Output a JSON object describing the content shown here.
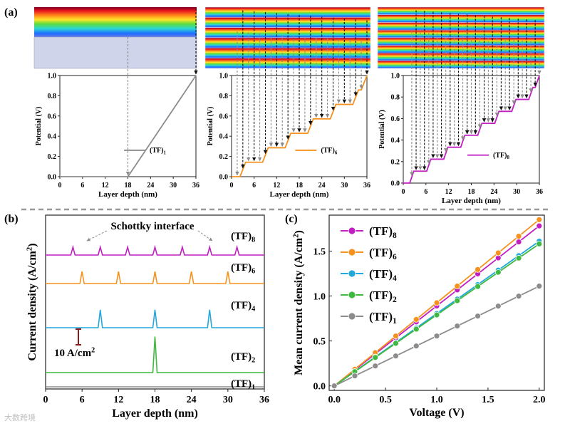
{
  "figure": {
    "panel_labels": [
      "(a)",
      "(b)",
      "(c)"
    ],
    "watermark": "大数跨境"
  },
  "chart_data": [
    {
      "type": "line",
      "panel": "(a) left",
      "xlabel": "Layer depth (nm)",
      "ylabel": "Potential (V)",
      "xlim": [
        0,
        36
      ],
      "ylim": [
        0,
        1.0
      ],
      "xticks": [
        "0",
        "6",
        "12",
        "18",
        "24",
        "30",
        "36"
      ],
      "yticks": [
        "0.0",
        "0.2",
        "0.4",
        "0.6",
        "0.8",
        "1.0"
      ],
      "legend": "(TF)1",
      "legend_main": "(TF)",
      "legend_sub": "1",
      "color": "#8c8c8c",
      "x": [
        0,
        18,
        36
      ],
      "y": [
        0,
        0,
        1.0
      ],
      "dashed_markers_x": [
        18,
        36
      ]
    },
    {
      "type": "line",
      "panel": "(a) middle",
      "xlabel": "Layer depth (nm)",
      "ylabel": "Potential (V)",
      "xlim": [
        0,
        36
      ],
      "ylim": [
        0,
        1.0
      ],
      "xticks": [
        "0",
        "6",
        "12",
        "18",
        "24",
        "30",
        "36"
      ],
      "yticks": [
        "0.0",
        "0.2",
        "0.4",
        "0.6",
        "0.8",
        "1.0"
      ],
      "legend": "(TF)6",
      "legend_main": "(TF)",
      "legend_sub": "6",
      "color": "#f5921e",
      "steps": 6,
      "step_period": 6,
      "rise_width": 1.5,
      "start_potential": 0.0,
      "end_potential": 1.0,
      "dashed_markers_x": [
        1.5,
        3,
        4.5,
        6,
        7.5,
        9,
        10.5,
        12,
        13.5,
        15,
        16.5,
        18,
        19.5,
        21,
        22.5,
        24,
        25.5,
        27,
        28.5,
        30,
        31.5,
        33,
        34.5,
        36
      ]
    },
    {
      "type": "line",
      "panel": "(a) right",
      "xlabel": "Layer depth (nm)",
      "ylabel": "Potential (V)",
      "xlim": [
        0,
        36
      ],
      "ylim": [
        0,
        1.0
      ],
      "xticks": [
        "0",
        "6",
        "12",
        "18",
        "24",
        "30",
        "36"
      ],
      "yticks": [
        "0.0",
        "0.2",
        "0.4",
        "0.6",
        "0.8",
        "1.0"
      ],
      "legend": "(TF)8",
      "legend_main": "(TF)",
      "legend_sub": "8",
      "color": "#c21fc2",
      "steps": 8,
      "step_period": 4.5,
      "rise_width": 1.1,
      "start_potential": 0.0,
      "end_potential": 1.0,
      "dashed_markers_x": [
        2.25,
        3.4,
        4.5,
        5.6,
        6.75,
        7.9,
        9,
        10.1,
        11.25,
        12.4,
        13.5,
        14.6,
        15.75,
        16.9,
        18,
        19.1,
        20.25,
        21.4,
        22.5,
        23.6,
        24.75,
        25.9,
        27,
        28.1,
        29.25,
        30.4,
        31.5,
        32.6,
        33.75,
        34.9,
        36
      ]
    },
    {
      "type": "line",
      "panel": "(b)",
      "xlabel": "Layer depth (nm)",
      "ylabel": "Current density (A/cm2)",
      "ylabel_main": "Current density (A/cm",
      "ylabel_sup": "2",
      "ylabel_tail": ")",
      "xlim": [
        0,
        36
      ],
      "xticks": [
        "0",
        "6",
        "12",
        "18",
        "24",
        "30",
        "36"
      ],
      "annotation": "Schottky interface",
      "scalebar_label": "10 A/cm2",
      "scalebar_main": "10 A/cm",
      "scalebar_sup": "2",
      "series": [
        {
          "name": "(TF)8",
          "main": "(TF)",
          "sub": "8",
          "color": "#c21fc2",
          "peaks_x": [
            4.5,
            9,
            13.5,
            18,
            22.5,
            27,
            31.5
          ],
          "peak_height": 2
        },
        {
          "name": "(TF)6",
          "main": "(TF)",
          "sub": "6",
          "color": "#f5921e",
          "peaks_x": [
            6,
            12,
            18,
            24,
            30
          ],
          "peak_height": 3
        },
        {
          "name": "(TF)4",
          "main": "(TF)",
          "sub": "4",
          "color": "#22a9dc",
          "peaks_x": [
            9,
            18,
            27
          ],
          "peak_height": 4.5
        },
        {
          "name": "(TF)2",
          "main": "(TF)",
          "sub": "2",
          "color": "#3fb93f",
          "peaks_x": [
            18
          ],
          "peak_height": 9
        },
        {
          "name": "(TF)1",
          "main": "(TF)",
          "sub": "1",
          "color": "#8c8c8c",
          "peaks_x": [],
          "peak_height": 0
        }
      ]
    },
    {
      "type": "line",
      "panel": "(c)",
      "xlabel": "Voltage (V)",
      "ylabel": "Mean current density (A/cm2)",
      "ylabel_main": "Mean current density (A/cm",
      "ylabel_sup": "2",
      "ylabel_tail": ")",
      "xlim": [
        -0.05,
        2.05
      ],
      "ylim": [
        -0.05,
        1.9
      ],
      "xticks": [
        "0.0",
        "0.5",
        "1.0",
        "1.5",
        "2.0"
      ],
      "yticks": [
        "0.0",
        "0.5",
        "1.0",
        "1.5"
      ],
      "x": [
        0.0,
        0.2,
        0.4,
        0.6,
        0.8,
        1.0,
        1.2,
        1.4,
        1.6,
        1.8,
        2.0
      ],
      "series": [
        {
          "name": "(TF)8",
          "main": "(TF)",
          "sub": "8",
          "color": "#c21fc2",
          "values": [
            0,
            0.178,
            0.356,
            0.534,
            0.712,
            0.89,
            1.068,
            1.246,
            1.424,
            1.602,
            1.78
          ]
        },
        {
          "name": "(TF)6",
          "main": "(TF)",
          "sub": "6",
          "color": "#f5921e",
          "values": [
            0,
            0.185,
            0.37,
            0.555,
            0.74,
            0.925,
            1.11,
            1.295,
            1.48,
            1.665,
            1.85
          ]
        },
        {
          "name": "(TF)4",
          "main": "(TF)",
          "sub": "4",
          "color": "#22a9dc",
          "values": [
            0,
            0.161,
            0.322,
            0.483,
            0.644,
            0.805,
            0.966,
            1.127,
            1.288,
            1.449,
            1.61
          ]
        },
        {
          "name": "(TF)2",
          "main": "(TF)",
          "sub": "2",
          "color": "#3fb93f",
          "values": [
            0,
            0.158,
            0.316,
            0.474,
            0.632,
            0.79,
            0.948,
            1.106,
            1.264,
            1.422,
            1.58
          ]
        },
        {
          "name": "(TF)1",
          "main": "(TF)",
          "sub": "1",
          "color": "#8c8c8c",
          "values": [
            0,
            0.111,
            0.222,
            0.333,
            0.444,
            0.555,
            0.666,
            0.777,
            0.888,
            0.999,
            1.11
          ]
        }
      ]
    }
  ]
}
